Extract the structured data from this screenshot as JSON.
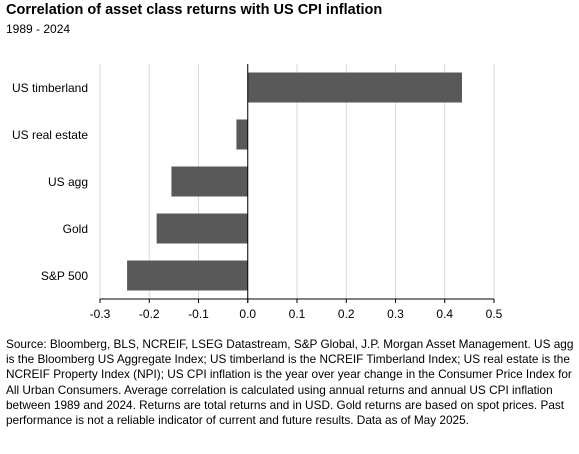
{
  "title": "Correlation of asset class returns with US CPI inflation",
  "subtitle": "1989 - 2024",
  "source": "Source: Bloomberg, BLS, NCREIF, LSEG Datastream, S&P Global, J.P. Morgan Asset Management.  US agg is the Bloomberg US Aggregate Index; US timberland is the NCREIF Timberland Index; US real estate is the NCREIF Property Index (NPI); US CPI inflation is the year over year change in the Consumer Price Index for All Urban Consumers. Average correlation is calculated using annual returns and annual US CPI inflation between 1989 and 2024. Returns are total returns and in USD. Gold returns are based on spot prices. Past performance is not a reliable indicator of current and future results. Data as of May 2025.",
  "chart_data": {
    "type": "bar",
    "orientation": "horizontal",
    "categories": [
      "US timberland",
      "US real estate",
      "US agg",
      "Gold",
      "S&P 500"
    ],
    "values": [
      0.435,
      -0.023,
      -0.155,
      -0.185,
      -0.245
    ],
    "xlim": [
      -0.3,
      0.5
    ],
    "xticks": [
      -0.3,
      -0.2,
      -0.1,
      0.0,
      0.1,
      0.2,
      0.3,
      0.4,
      0.5
    ],
    "xtick_labels": [
      "-0.3",
      "-0.2",
      "-0.1",
      "0.0",
      "0.1",
      "0.2",
      "0.3",
      "0.4",
      "0.5"
    ],
    "bar_color": "#595959",
    "grid": true,
    "legend": "none"
  }
}
